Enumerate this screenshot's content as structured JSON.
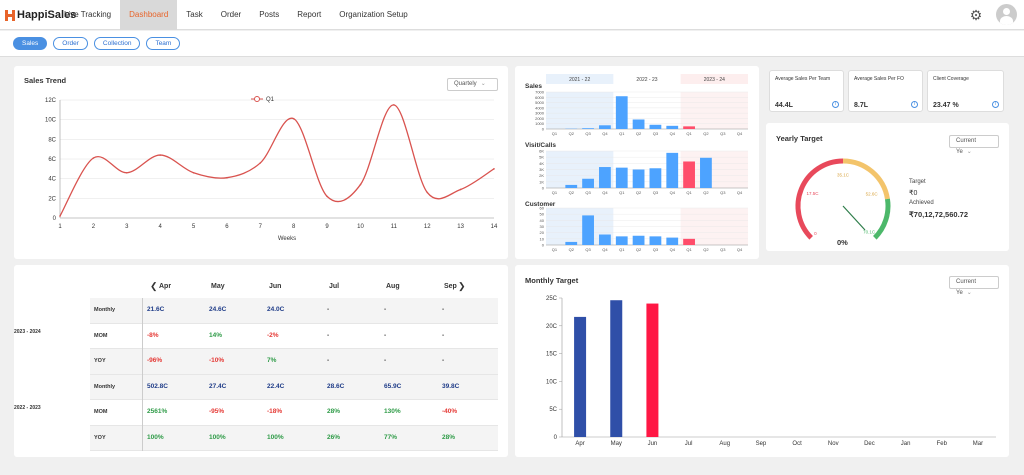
{
  "brand": {
    "name": "HappiSales",
    "accent": "#e8642a"
  },
  "nav": {
    "items": [
      "Live Tracking",
      "Dashboard",
      "Task",
      "Order",
      "Posts",
      "Report",
      "Organization Setup"
    ],
    "active_index": 1
  },
  "tabs": {
    "items": [
      "Sales",
      "Order",
      "Collection",
      "Team"
    ],
    "active_index": 0
  },
  "sales_trend": {
    "title": "Sales Trend",
    "period": "Quartely",
    "legend": "Q1",
    "xlabel": "Weeks",
    "x_ticks": [
      "1",
      "2",
      "3",
      "4",
      "5",
      "6",
      "7",
      "8",
      "9",
      "10",
      "11",
      "12",
      "13",
      "14"
    ],
    "y_ticks": [
      "0",
      "2C",
      "4C",
      "6C",
      "8C",
      "10C",
      "12C"
    ]
  },
  "chart_data": [
    {
      "type": "line",
      "series": [
        {
          "name": "Q1",
          "color": "#d9534f",
          "x": [
            1,
            2,
            3,
            4,
            5,
            6,
            7,
            8,
            9,
            10,
            11,
            12,
            13,
            14
          ],
          "y": [
            0.2,
            6.1,
            4.6,
            6.4,
            4.6,
            4.1,
            5.6,
            10.1,
            2.2,
            3.4,
            11.5,
            2.6,
            2.9,
            5.0
          ]
        }
      ],
      "xlim": [
        1,
        14
      ],
      "ylim": [
        0,
        12
      ]
    },
    {
      "type": "bar",
      "name": "Sales",
      "periods": [
        "2021 - 22",
        "2022 - 23",
        "2023 - 24"
      ],
      "categories": [
        "Q1",
        "Q2",
        "Q3",
        "Q4",
        "Q1",
        "Q2",
        "Q3",
        "Q4",
        "Q1",
        "Q2",
        "Q3",
        "Q4"
      ],
      "values": [
        0,
        50,
        150,
        700,
        6200,
        1800,
        800,
        600,
        500,
        0,
        0,
        0
      ],
      "y_ticks": [
        "0",
        "1000",
        "2000",
        "3000",
        "4000",
        "5000",
        "6000",
        "7000"
      ],
      "ylim": [
        0,
        7000
      ]
    },
    {
      "type": "bar",
      "name": "Visit/Calls",
      "categories": [
        "Q1",
        "Q2",
        "Q3",
        "Q4",
        "Q1",
        "Q2",
        "Q3",
        "Q4",
        "Q1",
        "Q2",
        "Q3",
        "Q4"
      ],
      "values": [
        0,
        0.5,
        1.5,
        3.4,
        3.3,
        3.0,
        3.2,
        5.7,
        4.3,
        4.9,
        0,
        0
      ],
      "y_ticks": [
        "0",
        "1K",
        "2K",
        "3K",
        "4K",
        "5K",
        "6K"
      ],
      "ylim": [
        0,
        6
      ]
    },
    {
      "type": "bar",
      "name": "Customer",
      "categories": [
        "Q1",
        "Q2",
        "Q3",
        "Q4",
        "Q1",
        "Q2",
        "Q3",
        "Q4",
        "Q1",
        "Q2",
        "Q3",
        "Q4"
      ],
      "values": [
        0,
        5,
        48,
        17,
        14,
        15,
        14,
        12,
        10,
        0,
        0,
        0
      ],
      "y_ticks": [
        "0",
        "10",
        "20",
        "30",
        "40",
        "50",
        "60"
      ],
      "ylim": [
        0,
        60
      ]
    },
    {
      "type": "bar",
      "name": "Monthly Target",
      "categories": [
        "Apr",
        "May",
        "Jun",
        "Jul",
        "Aug",
        "Sep",
        "Oct",
        "Nov",
        "Dec",
        "Jan",
        "Feb",
        "Mar"
      ],
      "values": [
        21.6,
        24.6,
        24.0,
        0,
        0,
        0,
        0,
        0,
        0,
        0,
        0,
        0
      ],
      "colors": [
        "#2f4fa8",
        "#2f4fa8",
        "#ff1744",
        "#2f4fa8",
        "#2f4fa8",
        "#2f4fa8",
        "#2f4fa8",
        "#2f4fa8",
        "#2f4fa8",
        "#2f4fa8",
        "#2f4fa8",
        "#2f4fa8"
      ],
      "y_ticks": [
        "0",
        "5C",
        "10C",
        "15C",
        "20C",
        "25C"
      ],
      "ylim": [
        0,
        25
      ]
    }
  ],
  "kpis": [
    {
      "title": "Average Sales Per Team",
      "value": "44.4L"
    },
    {
      "title": "Average Sales Per FO",
      "value": "8.7L"
    },
    {
      "title": "Client Coverage",
      "value": "23.47 %"
    }
  ],
  "yearly_target": {
    "title": "Yearly Target",
    "period": "Current Ye",
    "target_label": "Target",
    "target_value": "₹0",
    "achieved_label": "Achieved",
    "achieved_value": "₹70,12,72,560.72",
    "percent": "0%",
    "percent_value": 0,
    "gauge_labels": [
      "0",
      "17.5C",
      "35.1C",
      "52.6C",
      "70.1C"
    ]
  },
  "comparison_table": {
    "months": [
      "Apr",
      "May",
      "Jun",
      "Jul",
      "Aug",
      "Sep"
    ],
    "groups": [
      {
        "year": "2023 - 2024",
        "rows": [
          {
            "label": "Monthly",
            "cells": [
              "21.6C",
              "24.6C",
              "24.0C",
              "-",
              "-",
              "-"
            ],
            "tone": [
              "navy",
              "navy",
              "navy",
              "plain",
              "plain",
              "plain"
            ]
          },
          {
            "label": "MOM",
            "cells": [
              "-8%",
              "14%",
              "-2%",
              "-",
              "-",
              "-"
            ],
            "tone": [
              "red",
              "green",
              "red",
              "plain",
              "plain",
              "plain"
            ]
          },
          {
            "label": "YOY",
            "cells": [
              "-96%",
              "-10%",
              "7%",
              "-",
              "-",
              "-"
            ],
            "tone": [
              "red",
              "red",
              "green",
              "plain",
              "plain",
              "plain"
            ]
          }
        ]
      },
      {
        "year": "2022 - 2023",
        "rows": [
          {
            "label": "Monthly",
            "cells": [
              "502.8C",
              "27.4C",
              "22.4C",
              "28.6C",
              "65.9C",
              "39.8C"
            ],
            "tone": [
              "navy",
              "navy",
              "navy",
              "navy",
              "navy",
              "navy"
            ]
          },
          {
            "label": "MOM",
            "cells": [
              "2561%",
              "-95%",
              "-18%",
              "28%",
              "130%",
              "-40%"
            ],
            "tone": [
              "green",
              "red",
              "red",
              "green",
              "green",
              "red"
            ]
          },
          {
            "label": "YOY",
            "cells": [
              "100%",
              "100%",
              "100%",
              "26%",
              "77%",
              "28%"
            ],
            "tone": [
              "green",
              "green",
              "green",
              "green",
              "green",
              "green"
            ]
          }
        ]
      }
    ]
  },
  "monthly_target": {
    "title": "Monthly Target",
    "period": "Current Ye"
  }
}
